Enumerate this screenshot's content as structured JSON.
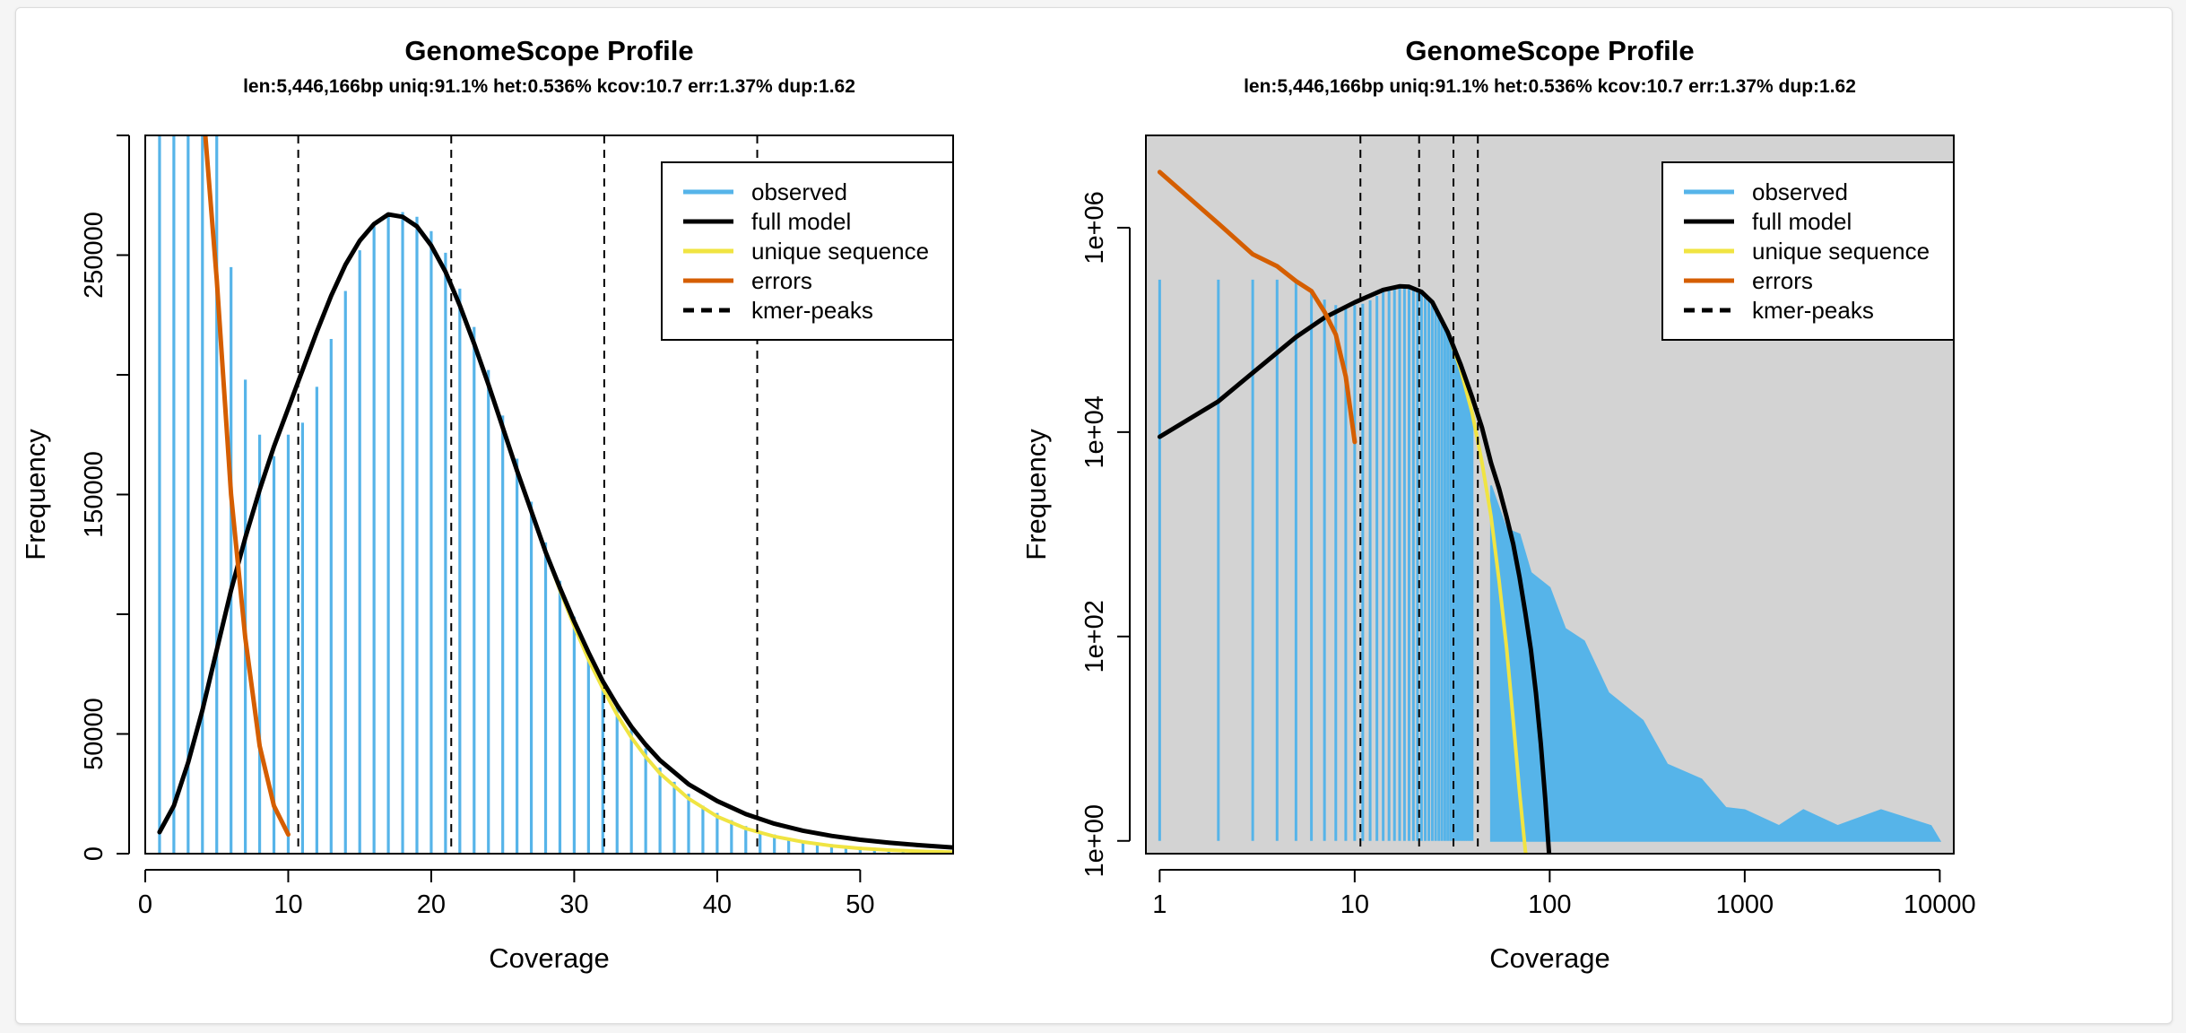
{
  "chart_data": [
    {
      "type": "bar",
      "scale": "linear",
      "title": "GenomeScope Profile",
      "subtitle": "len:5,446,166bp uniq:91.1% het:0.536% kcov:10.7 err:1.37% dup:1.62",
      "xlabel": "Coverage",
      "ylabel": "Frequency",
      "xlim": [
        0,
        56.5
      ],
      "ylim": [
        0,
        300000
      ],
      "xticks": [
        0,
        10,
        20,
        30,
        40,
        50
      ],
      "xtick_labels": [
        "0",
        "10",
        "20",
        "30",
        "40",
        "50"
      ],
      "yticks": [
        0,
        50000,
        100000,
        150000,
        200000,
        250000,
        300000
      ],
      "ytick_labels": [
        "0",
        "50000",
        "",
        "150000",
        "",
        "250000",
        ""
      ],
      "background": "#ffffff",
      "legend_position": "top-right",
      "legend": [
        {
          "label": "observed",
          "color": "#56b4e9",
          "dash": false
        },
        {
          "label": "full model",
          "color": "#000000",
          "dash": false
        },
        {
          "label": "unique sequence",
          "color": "#f0e442",
          "dash": false
        },
        {
          "label": "errors",
          "color": "#d55e00",
          "dash": false
        },
        {
          "label": "kmer-peaks",
          "color": "#000000",
          "dash": true
        }
      ],
      "kmer_peaks": [
        10.7,
        21.4,
        32.1,
        42.8
      ],
      "observed": {
        "x": [
          1,
          2,
          3,
          4,
          5,
          6,
          7,
          8,
          9,
          10,
          11,
          12,
          13,
          14,
          15,
          16,
          17,
          18,
          19,
          20,
          21,
          22,
          23,
          24,
          25,
          26,
          27,
          28,
          29,
          30,
          31,
          32,
          33,
          34,
          35,
          36,
          37,
          38,
          39,
          40,
          41,
          42,
          43,
          44,
          45,
          46,
          47,
          48,
          49,
          50,
          51,
          52,
          53,
          54,
          55,
          56
        ],
        "y": [
          310000,
          310000,
          310000,
          310000,
          310000,
          245000,
          198000,
          175000,
          166000,
          175000,
          180000,
          195000,
          215000,
          235000,
          252000,
          262000,
          267000,
          268000,
          266000,
          260000,
          251000,
          236000,
          220000,
          202000,
          183000,
          165000,
          147000,
          130000,
          114000,
          99000,
          85000,
          73000,
          62000,
          52000,
          44000,
          36000,
          30000,
          25000,
          20000,
          17000,
          14000,
          11500,
          9500,
          8000,
          6700,
          5600,
          4700,
          4000,
          3400,
          2900,
          2500,
          2200,
          1900,
          1700,
          1500,
          1300
        ]
      },
      "full_model": {
        "x": [
          1,
          2,
          3,
          4,
          5,
          6,
          7,
          8,
          9,
          10,
          11,
          12,
          13,
          14,
          15,
          16,
          17,
          18,
          19,
          20,
          21,
          22,
          23,
          24,
          25,
          26,
          27,
          28,
          29,
          30,
          31,
          32,
          33,
          34,
          35,
          36,
          38,
          40,
          42,
          44,
          46,
          48,
          50,
          52,
          54,
          56.5
        ],
        "y": [
          9000,
          20000,
          38000,
          60000,
          85000,
          110000,
          132000,
          152000,
          170000,
          186000,
          202000,
          218000,
          233000,
          246000,
          256000,
          263000,
          267000,
          266000,
          262000,
          254000,
          243000,
          229000,
          213000,
          196000,
          178000,
          160000,
          143000,
          126000,
          111000,
          97000,
          84000,
          72000,
          62000,
          53000,
          45500,
          39000,
          29000,
          22000,
          16500,
          12500,
          9600,
          7400,
          5800,
          4600,
          3600,
          2600
        ]
      },
      "unique_sequence": {
        "x": [
          1,
          2,
          3,
          4,
          5,
          6,
          7,
          8,
          9,
          10,
          11,
          12,
          13,
          14,
          15,
          16,
          17,
          18,
          19,
          20,
          21,
          22,
          23,
          24,
          25,
          26,
          27,
          28,
          29,
          30,
          31,
          32,
          33,
          34,
          35,
          36,
          38,
          40,
          42,
          44,
          46,
          48,
          50,
          52,
          54,
          56.5
        ],
        "y": [
          9000,
          20000,
          38000,
          60000,
          85000,
          110000,
          132000,
          152000,
          170000,
          186000,
          202000,
          218000,
          233000,
          246000,
          256000,
          263000,
          267000,
          266000,
          262000,
          254000,
          243000,
          229000,
          213000,
          196000,
          178000,
          160000,
          143000,
          126000,
          110000,
          95000,
          81000,
          69000,
          58000,
          48500,
          40500,
          33500,
          23000,
          15500,
          10500,
          7200,
          4900,
          3300,
          2200,
          1500,
          1000,
          600
        ]
      },
      "errors": {
        "x": [
          4.2,
          5,
          6,
          7,
          8,
          9,
          10
        ],
        "y": [
          300000,
          240000,
          150000,
          90000,
          45000,
          20000,
          8000
        ]
      }
    },
    {
      "type": "bar",
      "scale": "log",
      "title": "GenomeScope Profile",
      "subtitle": "len:5,446,166bp uniq:91.1% het:0.536% kcov:10.7 err:1.37% dup:1.62",
      "xlabel": "Coverage",
      "ylabel": "Frequency",
      "xlim": [
        0.85,
        11800
      ],
      "ylim": [
        0.75,
        8000000
      ],
      "xticks": [
        1,
        10,
        100,
        1000,
        10000
      ],
      "xtick_labels": [
        "1",
        "10",
        "100",
        "1000",
        "10000"
      ],
      "yticks": [
        1,
        100,
        10000,
        1000000
      ],
      "ytick_labels": [
        "1e+00",
        "1e+02",
        "1e+04",
        "1e+06"
      ],
      "background": "#d3d3d3",
      "legend_position": "top-right",
      "legend": [
        {
          "label": "observed",
          "color": "#56b4e9",
          "dash": false
        },
        {
          "label": "full model",
          "color": "#000000",
          "dash": false
        },
        {
          "label": "unique sequence",
          "color": "#f0e442",
          "dash": false
        },
        {
          "label": "errors",
          "color": "#d55e00",
          "dash": false
        },
        {
          "label": "kmer-peaks",
          "color": "#000000",
          "dash": true
        }
      ],
      "kmer_peaks": [
        10.7,
        21.4,
        32.1,
        42.8
      ],
      "observed_tail_envelope": {
        "x": [
          50,
          60,
          70,
          80,
          100,
          120,
          150,
          200,
          300,
          400,
          600,
          800,
          1000,
          1500,
          2000,
          3000,
          5000,
          9000,
          10000
        ],
        "y": [
          3000,
          1600,
          1000,
          600,
          300,
          170,
          90,
          40,
          15,
          8,
          4,
          3,
          2,
          2,
          2,
          2,
          2,
          2,
          1
        ]
      },
      "full_model": {
        "x": [
          1,
          2,
          3,
          5,
          7,
          10,
          14,
          17,
          19,
          22,
          25,
          30,
          35,
          40,
          45,
          50,
          55,
          60,
          65,
          70,
          75,
          80,
          85,
          90,
          95,
          100
        ],
        "y": [
          9000,
          20000,
          38000,
          85000,
          132000,
          186000,
          246000,
          267000,
          264000,
          236000,
          187000,
          95000,
          45500,
          22000,
          11000,
          5000,
          2800,
          1500,
          800,
          380,
          170,
          75,
          28,
          9,
          2.5,
          0.6
        ]
      },
      "unique_sequence": {
        "x": [
          1,
          2,
          3,
          5,
          7,
          10,
          14,
          17,
          19,
          22,
          25,
          30,
          35,
          40,
          45,
          50,
          55,
          60,
          65,
          70,
          75,
          78
        ],
        "y": [
          9000,
          20000,
          38000,
          85000,
          132000,
          186000,
          246000,
          267000,
          264000,
          236000,
          187000,
          95000,
          40500,
          15500,
          5000,
          1500,
          350,
          80,
          15,
          3,
          0.8,
          0.5
        ]
      },
      "errors": {
        "x": [
          1,
          2,
          3,
          4,
          5,
          6,
          7,
          8,
          9,
          10
        ],
        "y": [
          3500000,
          1100000,
          550000,
          420000,
          300000,
          240000,
          150000,
          90000,
          35000,
          8000
        ]
      }
    }
  ]
}
